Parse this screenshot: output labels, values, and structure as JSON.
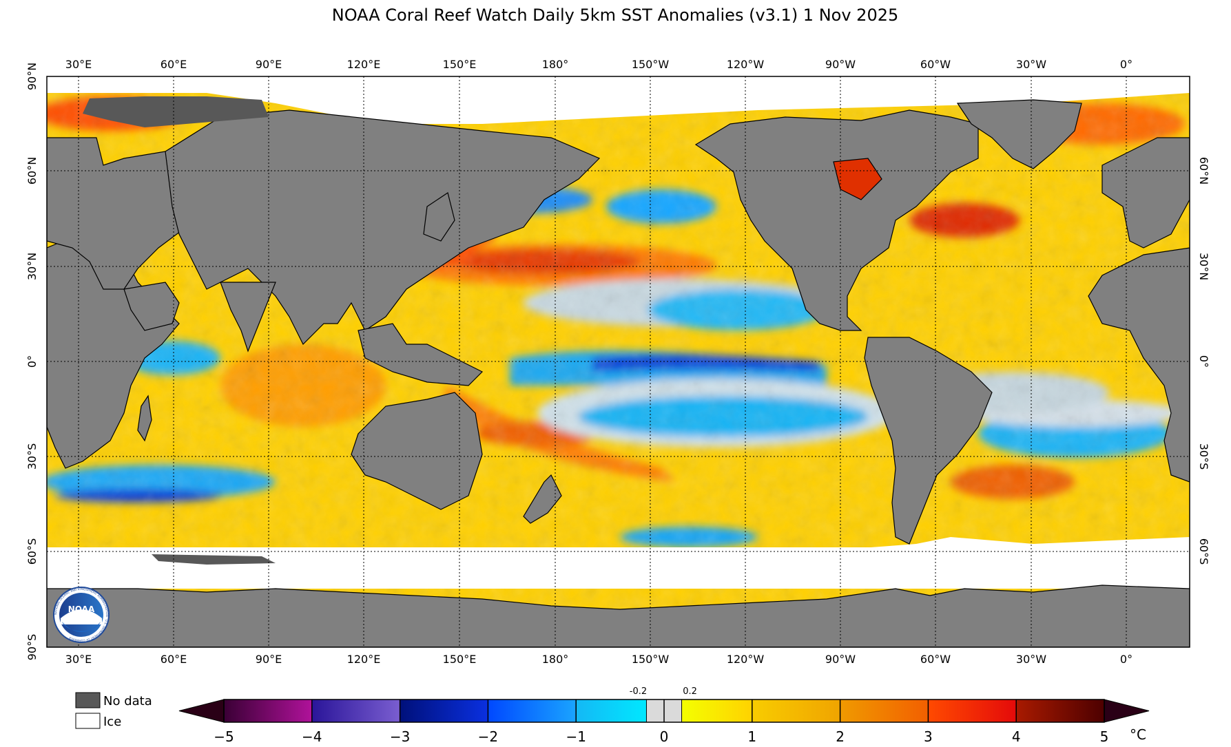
{
  "title": "NOAA Coral Reef Watch Daily 5km SST Anomalies  (v3.1)   1 Nov 2025",
  "map": {
    "longitude_labels": [
      "30°E",
      "60°E",
      "90°E",
      "120°E",
      "150°E",
      "180°",
      "150°W",
      "120°W",
      "90°W",
      "60°W",
      "30°W",
      "0°"
    ],
    "latitude_labels_left": [
      "90°N",
      "60°N",
      "30°N",
      "0°",
      "30°S",
      "60°S",
      "90°S"
    ],
    "latitude_labels_right": [
      "60°N",
      "30°N",
      "0°",
      "30°S",
      "60°S"
    ],
    "colors": {
      "land": "#808080",
      "no_data": "#585858",
      "ice": "#ffffff",
      "neutral": "#d9d9d9"
    },
    "logo_text": "NOAA",
    "logo_ring_text": "NATIONAL OCEANIC AND ATMOSPHERIC ADMINISTRATION · U.S. DEPARTMENT OF COMMERCE"
  },
  "legend": {
    "no_data_label": "No data",
    "ice_label": "Ice"
  },
  "colorbar": {
    "unit": "°C",
    "tick_labels": [
      "−5",
      "−4",
      "−3",
      "−2",
      "−1",
      "0",
      "1",
      "2",
      "3",
      "4",
      "5"
    ],
    "small_labels": [
      "-0.2",
      "0.2"
    ],
    "min": -5,
    "max": 5,
    "segments": [
      {
        "from": -5,
        "to": -4,
        "color_start": "#3a0035",
        "color_end": "#b0129a"
      },
      {
        "from": -4,
        "to": -3,
        "color_start": "#2a1599",
        "color_end": "#7a5ed0"
      },
      {
        "from": -3,
        "to": -2,
        "color_start": "#00107a",
        "color_end": "#0a30e0"
      },
      {
        "from": -2,
        "to": -1,
        "color_start": "#0048ff",
        "color_end": "#1aa4ff"
      },
      {
        "from": -1,
        "to": -0.2,
        "color_start": "#14b8f5",
        "color_end": "#00e8ff"
      },
      {
        "from": -0.2,
        "to": 0.2,
        "color_start": "#dadada",
        "color_end": "#dadada"
      },
      {
        "from": 0.2,
        "to": 1,
        "color_start": "#f4ff00",
        "color_end": "#ffd200"
      },
      {
        "from": 1,
        "to": 2,
        "color_start": "#f8cc00",
        "color_end": "#f0a400"
      },
      {
        "from": 2,
        "to": 3,
        "color_start": "#f09a00",
        "color_end": "#f25f00"
      },
      {
        "from": 3,
        "to": 4,
        "color_start": "#ff4a00",
        "color_end": "#e40a0a"
      },
      {
        "from": 4,
        "to": 5,
        "color_start": "#a81a00",
        "color_end": "#4d0000"
      }
    ],
    "arrow_low_color": "#2a0016",
    "arrow_high_color": "#2a0016"
  }
}
